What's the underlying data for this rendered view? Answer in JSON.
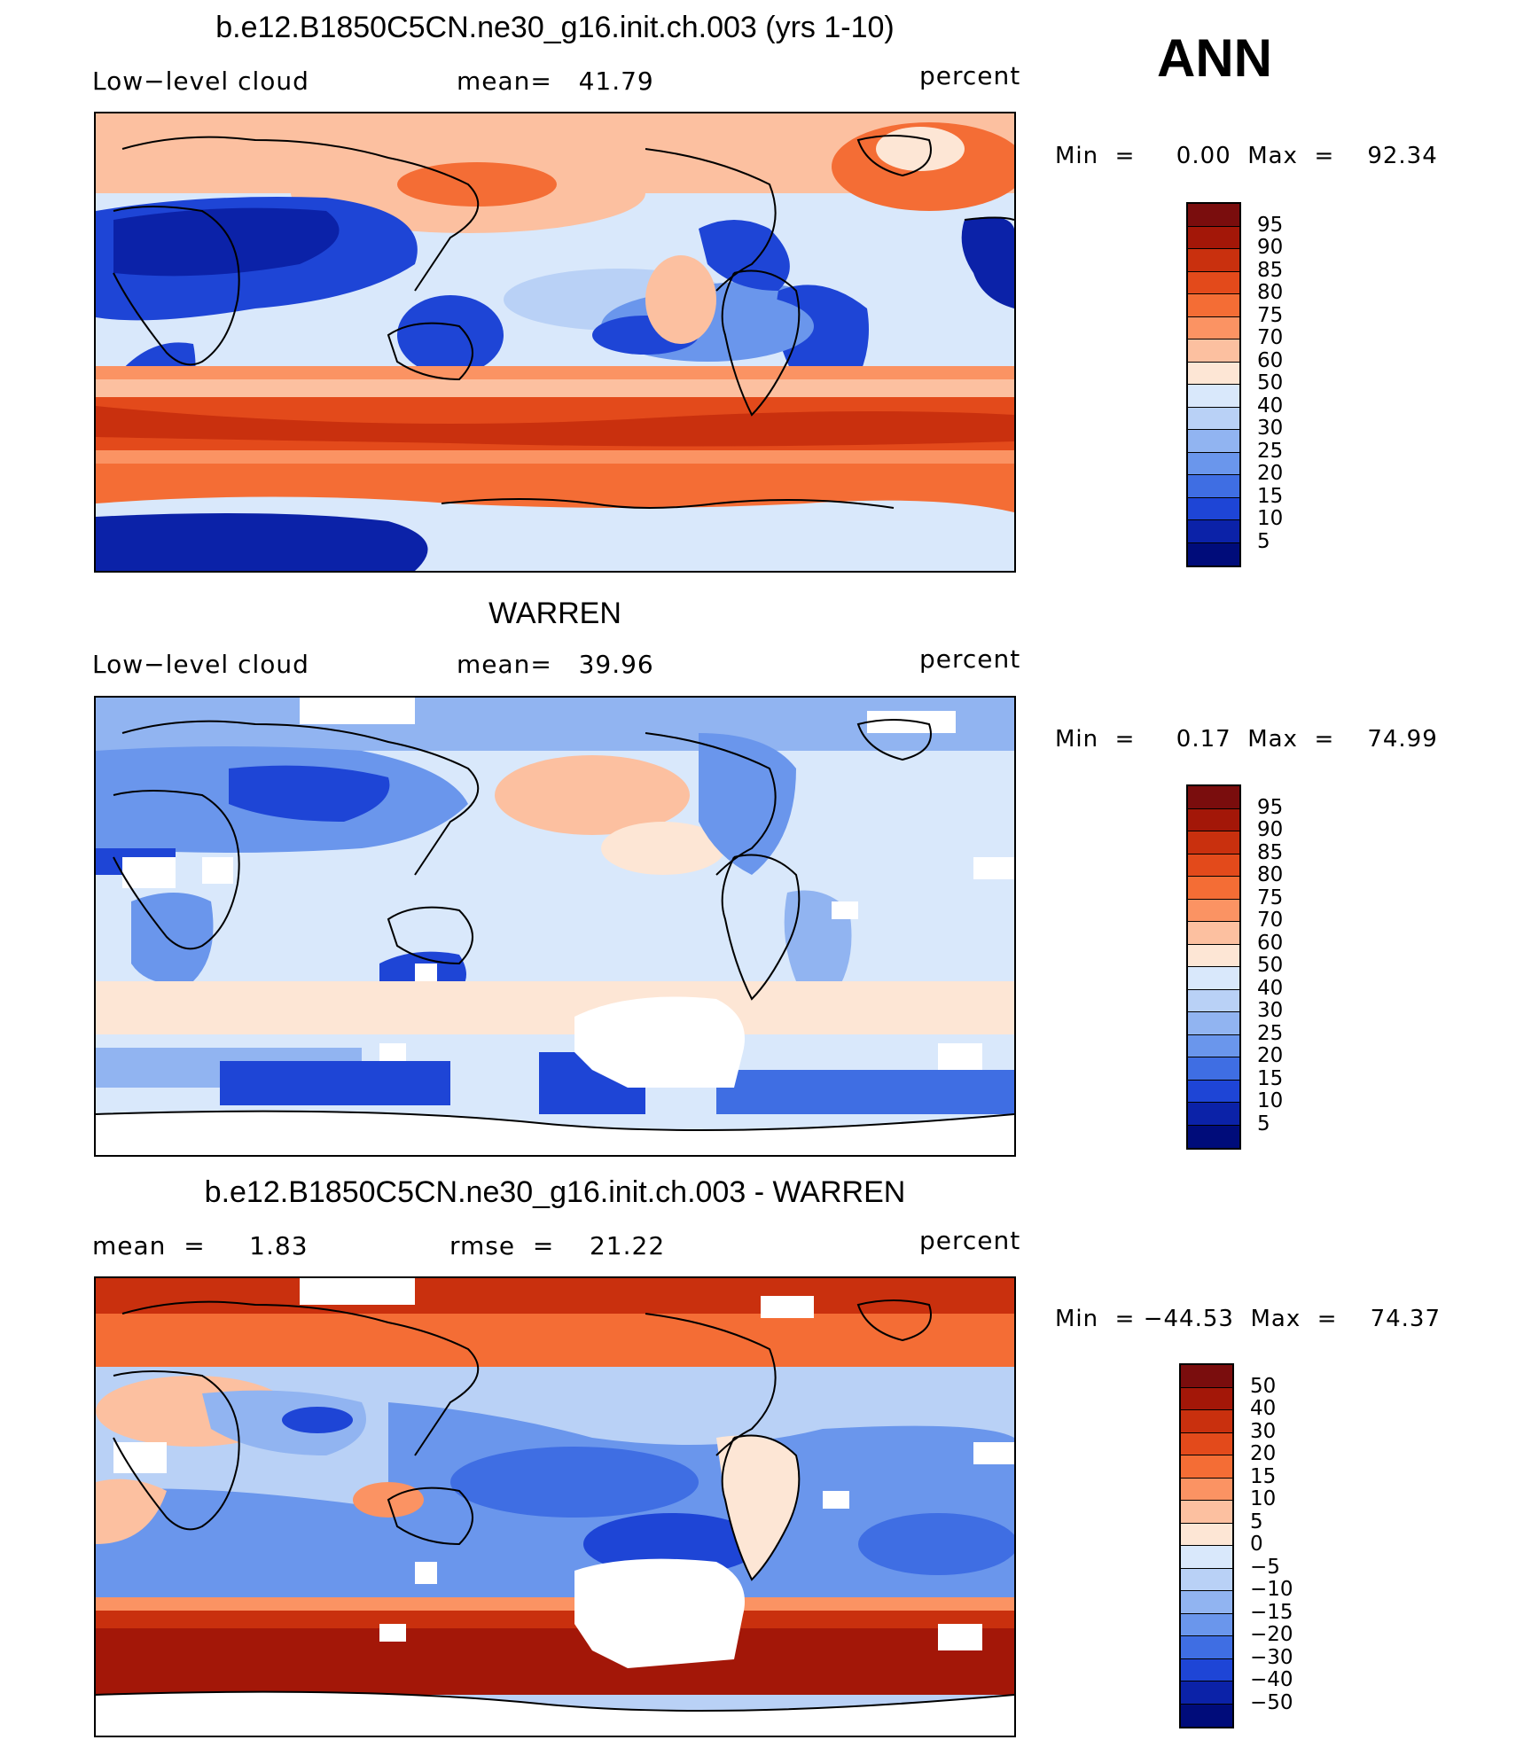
{
  "season": "ANN",
  "panels": [
    {
      "title": "b.e12.B1850C5CN.ne30_g16.init.ch.003 (yrs 1-10)",
      "left_label": "Low−level cloud",
      "mid_label": "mean=   41.79",
      "units": "percent",
      "minmax": "Min  =     0.00  Max  =    92.34",
      "colorbar": {
        "labels": [
          "95",
          "90",
          "85",
          "80",
          "75",
          "70",
          "60",
          "50",
          "40",
          "30",
          "25",
          "20",
          "15",
          "10",
          "5"
        ],
        "colors": [
          "#7a0d0d",
          "#a31708",
          "#c9300e",
          "#e34a1b",
          "#f46d35",
          "#fb9363",
          "#fcc0a0",
          "#fde6d5",
          "#d9e8fb",
          "#b9d1f6",
          "#91b4f1",
          "#6a96ec",
          "#3f6ee3",
          "#1e45d6",
          "#0b22a8",
          "#000c7a"
        ]
      },
      "map_data": {
        "variable": "Low-level cloud",
        "units": "percent",
        "mean": 41.79,
        "min": 0.0,
        "max": 92.34
      }
    },
    {
      "title": "WARREN",
      "left_label": "Low−level cloud",
      "mid_label": "mean=   39.96",
      "units": "percent",
      "minmax": "Min  =     0.17  Max  =    74.99",
      "colorbar": {
        "labels": [
          "95",
          "90",
          "85",
          "80",
          "75",
          "70",
          "60",
          "50",
          "40",
          "30",
          "25",
          "20",
          "15",
          "10",
          "5"
        ],
        "colors": [
          "#7a0d0d",
          "#a31708",
          "#c9300e",
          "#e34a1b",
          "#f46d35",
          "#fb9363",
          "#fcc0a0",
          "#fde6d5",
          "#d9e8fb",
          "#b9d1f6",
          "#91b4f1",
          "#6a96ec",
          "#3f6ee3",
          "#1e45d6",
          "#0b22a8",
          "#000c7a"
        ]
      },
      "map_data": {
        "variable": "Low-level cloud",
        "units": "percent",
        "mean": 39.96,
        "min": 0.17,
        "max": 74.99
      }
    },
    {
      "title": "b.e12.B1850C5CN.ne30_g16.init.ch.003 - WARREN",
      "left_label": "mean  =     1.83",
      "mid_label": "rmse  =    21.22",
      "units": "percent",
      "minmax": "Min  = −44.53  Max  =    74.37",
      "colorbar": {
        "labels": [
          "50",
          "40",
          "30",
          "20",
          "15",
          "10",
          "5",
          "0",
          "−5",
          "−10",
          "−15",
          "−20",
          "−30",
          "−40",
          "−50"
        ],
        "colors": [
          "#7a0d0d",
          "#a31708",
          "#c9300e",
          "#e34a1b",
          "#f46d35",
          "#fb9363",
          "#fcc0a0",
          "#fde6d5",
          "#d9e8fb",
          "#b9d1f6",
          "#91b4f1",
          "#6a96ec",
          "#3f6ee3",
          "#1e45d6",
          "#0b22a8",
          "#000c7a"
        ]
      },
      "map_data": {
        "variable": "Low-level cloud difference",
        "units": "percent",
        "mean": 1.83,
        "rmse": 21.22,
        "min": -44.53,
        "max": 74.37
      }
    }
  ]
}
